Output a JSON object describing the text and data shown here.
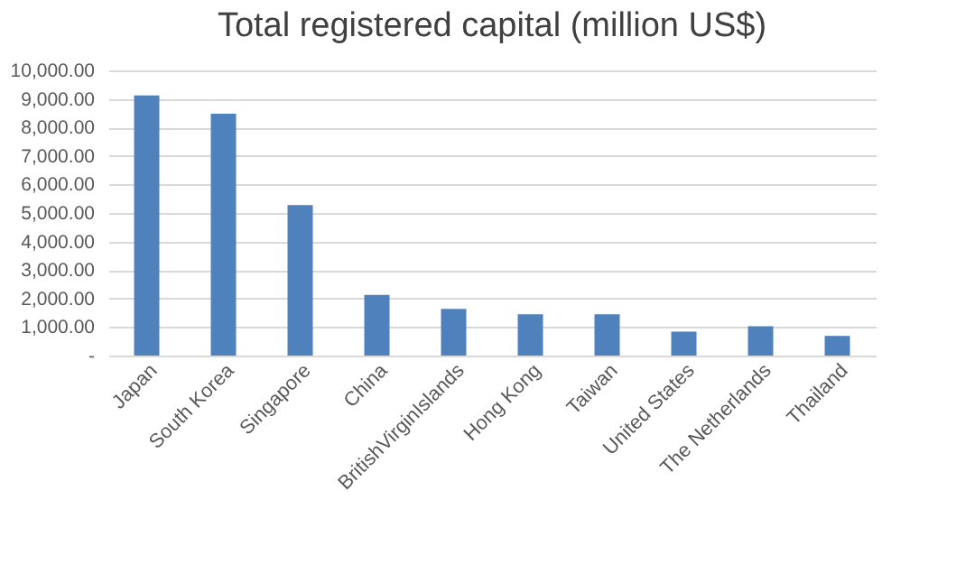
{
  "chart_data": {
    "type": "bar",
    "title": "Total registered capital (million US$)",
    "categories": [
      "Japan",
      "South Korea",
      "Singapore",
      "China",
      "BritishVirginIslands",
      "Hong Kong",
      "Taiwan",
      "United States",
      "The Netherlands",
      "Thailand"
    ],
    "values": [
      9120,
      8480,
      5280,
      2130,
      1640,
      1450,
      1450,
      840,
      1030,
      690
    ],
    "color": "#4f81bd",
    "ylim": [
      0,
      10000
    ],
    "yticks": [
      {
        "value": 0,
        "label": "-"
      },
      {
        "value": 1000,
        "label": "1,000.00"
      },
      {
        "value": 2000,
        "label": "2,000.00"
      },
      {
        "value": 3000,
        "label": "3,000.00"
      },
      {
        "value": 4000,
        "label": "4,000.00"
      },
      {
        "value": 5000,
        "label": "5,000.00"
      },
      {
        "value": 6000,
        "label": "6,000.00"
      },
      {
        "value": 7000,
        "label": "7,000.00"
      },
      {
        "value": 8000,
        "label": "8,000.00"
      },
      {
        "value": 9000,
        "label": "9,000.00"
      },
      {
        "value": 10000,
        "label": "10,000.00"
      }
    ],
    "grid": "y"
  }
}
